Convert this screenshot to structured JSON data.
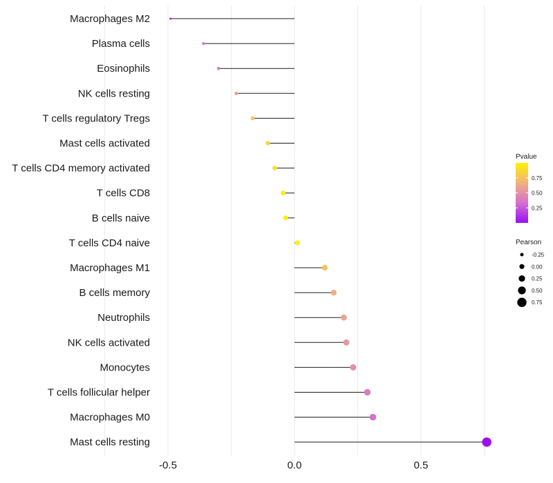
{
  "chart_data": {
    "type": "lollipop",
    "title": "",
    "xlabel": "",
    "ylabel": "",
    "xlim": [
      -0.99,
      1.0
    ],
    "xticks": [
      -0.5,
      0.0,
      0.5
    ],
    "xtick_labels": [
      "-0.5",
      "0.0",
      "0.5"
    ],
    "grid": "vertical",
    "categories": [
      "Macrophages M2",
      "Plasma cells",
      "Eosinophils",
      "NK cells resting",
      "T cells regulatory  Tregs",
      "Mast cells activated",
      "T cells CD4 memory activated",
      "T cells CD8",
      "B cells naive",
      "T cells CD4 naive",
      "Macrophages M1",
      "B cells memory",
      "Neutrophils",
      "NK cells activated",
      "Monocytes",
      "T cells follicular helper",
      "Macrophages M0",
      "Mast cells resting"
    ],
    "values": [
      -0.49,
      -0.36,
      -0.3,
      -0.23,
      -0.165,
      -0.105,
      -0.078,
      -0.045,
      -0.035,
      0.012,
      0.12,
      0.155,
      0.195,
      0.205,
      0.232,
      0.288,
      0.31,
      0.76
    ],
    "pvalues": [
      0.05,
      0.35,
      0.4,
      0.6,
      0.75,
      0.85,
      0.9,
      0.97,
      0.98,
      1.0,
      0.75,
      0.65,
      0.6,
      0.55,
      0.5,
      0.4,
      0.35,
      0.0
    ],
    "legend_pvalue": {
      "title": "Pvalue",
      "ticks": [
        0.75,
        0.5,
        0.25
      ],
      "tick_labels": [
        "0.75",
        "0.50",
        "0.25"
      ],
      "range": [
        0.0,
        1.0
      ],
      "colors": [
        "#9a10f0",
        "#d46fd0",
        "#f0b080",
        "#fff200"
      ],
      "position": "right"
    },
    "legend_pearson": {
      "title": "Pearson",
      "values": [
        -0.25,
        0.0,
        0.25,
        0.5,
        0.75
      ],
      "labels": [
        "-0.25",
        "0.00",
        "0.25",
        "0.50",
        "0.75"
      ],
      "position": "right"
    },
    "stem_color": "#1a1a1a",
    "grid_color": "#ebebeb"
  }
}
